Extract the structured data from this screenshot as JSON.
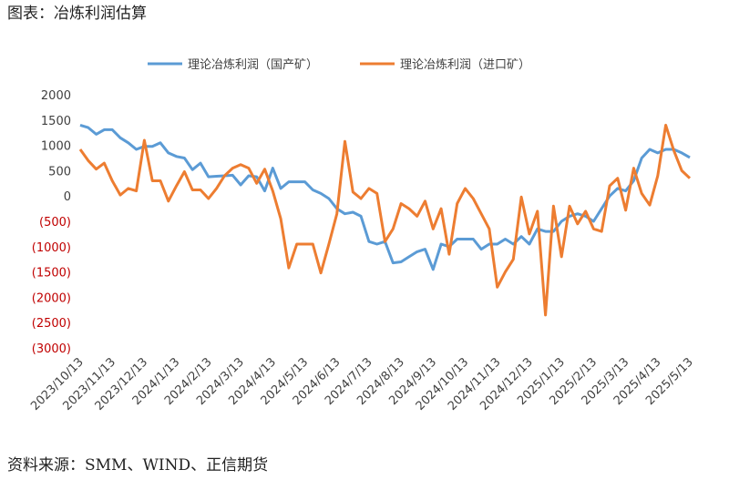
{
  "chart_data": {
    "type": "line",
    "title": "图表：冶炼利润估算",
    "source": "资料来源：SMM、WIND、正信期货",
    "categories": [
      "2023/10/13",
      null,
      null,
      null,
      "2023/11/13",
      null,
      null,
      null,
      "2023/12/13",
      null,
      null,
      null,
      "2024/1/13",
      null,
      null,
      null,
      "2024/2/13",
      null,
      null,
      null,
      "2024/3/13",
      null,
      null,
      null,
      "2024/4/13",
      null,
      null,
      null,
      "2024/5/13",
      null,
      null,
      null,
      "2024/6/13",
      null,
      null,
      null,
      "2024/7/13",
      null,
      null,
      null,
      "2024/8/13",
      null,
      null,
      null,
      "2024/9/13",
      null,
      null,
      null,
      "2024/10/13",
      null,
      null,
      null,
      "2024/11/13",
      null,
      null,
      null,
      "2024/12/13",
      null,
      null,
      null,
      "2025/1/13",
      null,
      null,
      null,
      "2025/2/13",
      null,
      null,
      null,
      "2025/3/13",
      null,
      null,
      null,
      "2025/4/13",
      null,
      null,
      null,
      "2025/5/13"
    ],
    "series": [
      {
        "name": "理论冶炼利润（国产矿）",
        "color": "#5b9bd5",
        "values": [
          1400,
          1350,
          1220,
          1310,
          1310,
          1150,
          1050,
          920,
          980,
          980,
          1050,
          850,
          780,
          750,
          520,
          650,
          380,
          390,
          400,
          410,
          220,
          400,
          380,
          100,
          550,
          150,
          280,
          280,
          280,
          120,
          50,
          -50,
          -250,
          -350,
          -320,
          -400,
          -900,
          -950,
          -900,
          -1320,
          -1300,
          -1200,
          -1100,
          -1050,
          -1450,
          -950,
          -1000,
          -850,
          -850,
          -850,
          -1050,
          -950,
          -950,
          -850,
          -950,
          -800,
          -950,
          -650,
          -700,
          -700,
          -500,
          -400,
          -350,
          -400,
          -500,
          -250,
          0,
          150,
          100,
          300,
          750,
          920,
          850,
          920,
          920,
          850,
          760
        ]
      },
      {
        "name": "理论冶炼利润（进口矿）",
        "color": "#ed7d31",
        "values": [
          920,
          700,
          530,
          650,
          300,
          20,
          150,
          100,
          1100,
          300,
          300,
          -100,
          200,
          480,
          120,
          120,
          -50,
          150,
          400,
          550,
          620,
          550,
          250,
          530,
          100,
          -450,
          -1420,
          -950,
          -950,
          -950,
          -1520,
          -950,
          -350,
          1080,
          80,
          -50,
          150,
          50,
          -900,
          -650,
          -150,
          -250,
          -400,
          -100,
          -650,
          -250,
          -1150,
          -150,
          150,
          -50,
          -350,
          -650,
          -1800,
          -1500,
          -1250,
          -20,
          -750,
          -300,
          -2350,
          -200,
          -1200,
          -200,
          -550,
          -300,
          -650,
          -700,
          200,
          350,
          -280,
          550,
          50,
          -180,
          400,
          1400,
          900,
          500,
          350
        ]
      }
    ],
    "ylim": [
      -3000,
      2000
    ],
    "yticks": [
      {
        "value": -3000,
        "label": "(3000)"
      },
      {
        "value": -2500,
        "label": "(2500)"
      },
      {
        "value": -2000,
        "label": "(2000)"
      },
      {
        "value": -1500,
        "label": "(1500)"
      },
      {
        "value": -1000,
        "label": "(1000)"
      },
      {
        "value": -500,
        "label": "(500)"
      },
      0,
      500,
      1000,
      1500,
      2000
    ],
    "legend": "top",
    "grid": false
  }
}
